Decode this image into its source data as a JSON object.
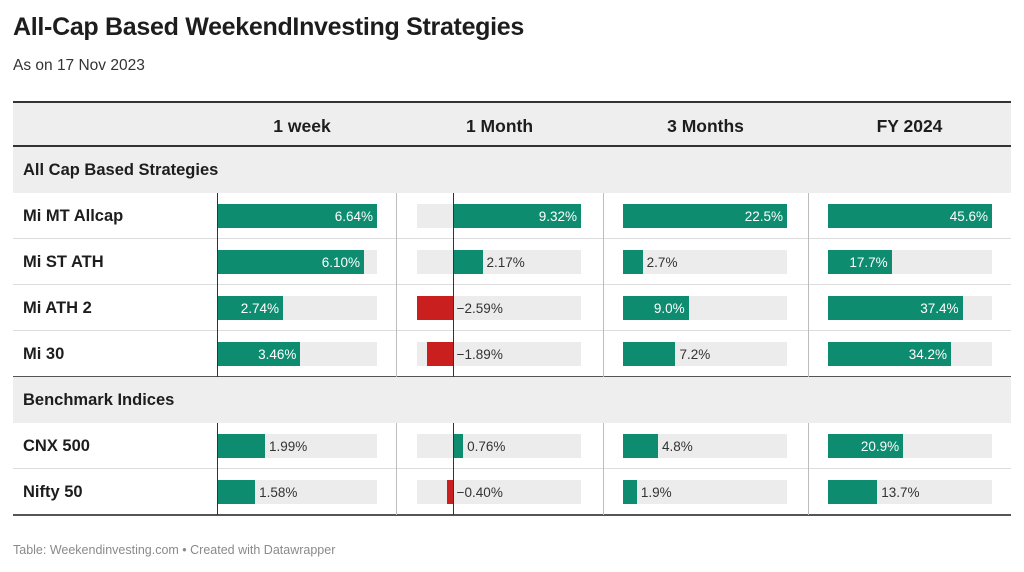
{
  "title": "All-Cap Based WeekendInvesting Strategies",
  "subtitle": "As on 17 Nov 2023",
  "footer": "Table: Weekendinvesting.com • Created with Datawrapper",
  "colors": {
    "positive": "#0e8c70",
    "negative": "#c9201f",
    "track": "#ececec"
  },
  "chart_data": {
    "type": "table",
    "columns": [
      "1 week",
      "1 Month",
      "3 Months",
      "FY 2024"
    ],
    "column_ranges": [
      [
        0,
        6.64
      ],
      [
        -2.59,
        9.32
      ],
      [
        0,
        22.5
      ],
      [
        0,
        45.6
      ]
    ],
    "groups": [
      {
        "label": "All Cap Based Strategies",
        "rows": [
          {
            "name": "Mi MT Allcap",
            "values": [
              6.64,
              9.32,
              22.5,
              45.6
            ],
            "labels": [
              "6.64%",
              "9.32%",
              "22.5%",
              "45.6%"
            ]
          },
          {
            "name": "Mi ST ATH",
            "values": [
              6.1,
              2.17,
              2.7,
              17.7
            ],
            "labels": [
              "6.10%",
              "2.17%",
              "2.7%",
              "17.7%"
            ]
          },
          {
            "name": "Mi ATH 2",
            "values": [
              2.74,
              -2.59,
              9.0,
              37.4
            ],
            "labels": [
              "2.74%",
              "−2.59%",
              "9.0%",
              "37.4%"
            ]
          },
          {
            "name": "Mi 30",
            "values": [
              3.46,
              -1.89,
              7.2,
              34.2
            ],
            "labels": [
              "3.46%",
              "−1.89%",
              "7.2%",
              "34.2%"
            ]
          }
        ]
      },
      {
        "label": "Benchmark Indices",
        "rows": [
          {
            "name": "CNX 500",
            "values": [
              1.99,
              0.76,
              4.8,
              20.9
            ],
            "labels": [
              "1.99%",
              "0.76%",
              "4.8%",
              "20.9%"
            ]
          },
          {
            "name": "Nifty 50",
            "values": [
              1.58,
              -0.4,
              1.9,
              13.7
            ],
            "labels": [
              "1.58%",
              "−0.40%",
              "1.9%",
              "13.7%"
            ]
          }
        ]
      }
    ]
  }
}
